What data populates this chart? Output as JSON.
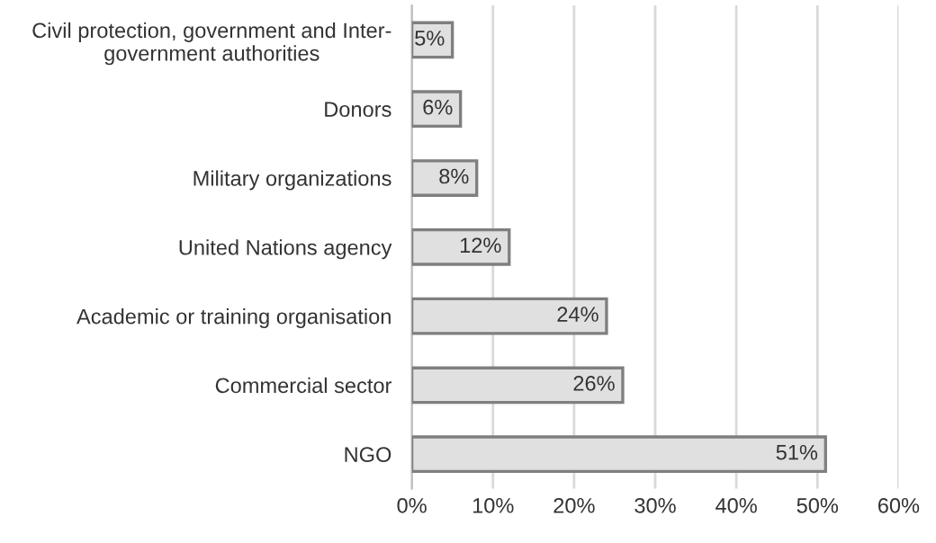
{
  "chart_data": {
    "type": "bar",
    "orientation": "horizontal",
    "categories": [
      "Civil protection, government and Inter-\ngovernment authorities",
      "Donors",
      "Military organizations",
      "United Nations agency",
      "Academic or training organisation",
      "Commercial sector",
      "NGO"
    ],
    "values": [
      5,
      6,
      8,
      12,
      24,
      26,
      51
    ],
    "value_labels": [
      "5%",
      "6%",
      "8%",
      "12%",
      "24%",
      "26%",
      "51%"
    ],
    "color": "#e0e0e0",
    "xlim": [
      0,
      60
    ],
    "xticks": [
      {
        "value": 0,
        "label": "0%"
      },
      {
        "value": 10,
        "label": "10%"
      },
      {
        "value": 20,
        "label": "20%"
      },
      {
        "value": 30,
        "label": "30%"
      },
      {
        "value": 40,
        "label": "40%"
      },
      {
        "value": 50,
        "label": "50%"
      },
      {
        "value": 60,
        "label": "60%"
      }
    ],
    "grid": "x",
    "legend": false
  }
}
